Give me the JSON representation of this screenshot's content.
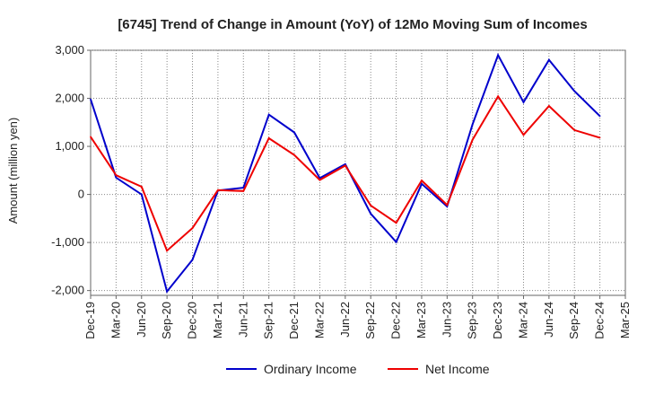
{
  "chart_data": {
    "type": "line",
    "title": "[6745]  Trend of Change in Amount (YoY) of 12Mo Moving Sum of Incomes",
    "xlabel": "",
    "ylabel": "Amount (million yen)",
    "ylim": [
      -2100,
      3000
    ],
    "yticks": [
      3000,
      2000,
      1000,
      0,
      -1000,
      -2000
    ],
    "ytick_labels": [
      "3,000",
      "2,000",
      "1,000",
      "0",
      "-1,000",
      "-2,000"
    ],
    "categories": [
      "Dec-19",
      "Mar-20",
      "Jun-20",
      "Sep-20",
      "Dec-20",
      "Mar-21",
      "Jun-21",
      "Sep-21",
      "Dec-21",
      "Mar-22",
      "Jun-22",
      "Sep-22",
      "Dec-22",
      "Mar-23",
      "Jun-23",
      "Sep-23",
      "Dec-23",
      "Mar-24",
      "Jun-24",
      "Sep-24",
      "Dec-24",
      "Mar-25"
    ],
    "series": [
      {
        "name": "Ordinary Income",
        "color": "#0000cc",
        "values": [
          1980,
          350,
          0,
          -2020,
          -1360,
          80,
          140,
          1660,
          1290,
          340,
          630,
          -400,
          -990,
          220,
          -250,
          1460,
          2900,
          1920,
          2800,
          2150,
          1630,
          null
        ]
      },
      {
        "name": "Net Income",
        "color": "#ee0000",
        "values": [
          1200,
          400,
          160,
          -1170,
          -700,
          90,
          70,
          1170,
          820,
          300,
          600,
          -230,
          -590,
          290,
          -220,
          1140,
          2040,
          1240,
          1840,
          1340,
          1180,
          null
        ]
      }
    ],
    "grid": true,
    "legend": "bottom-center"
  }
}
